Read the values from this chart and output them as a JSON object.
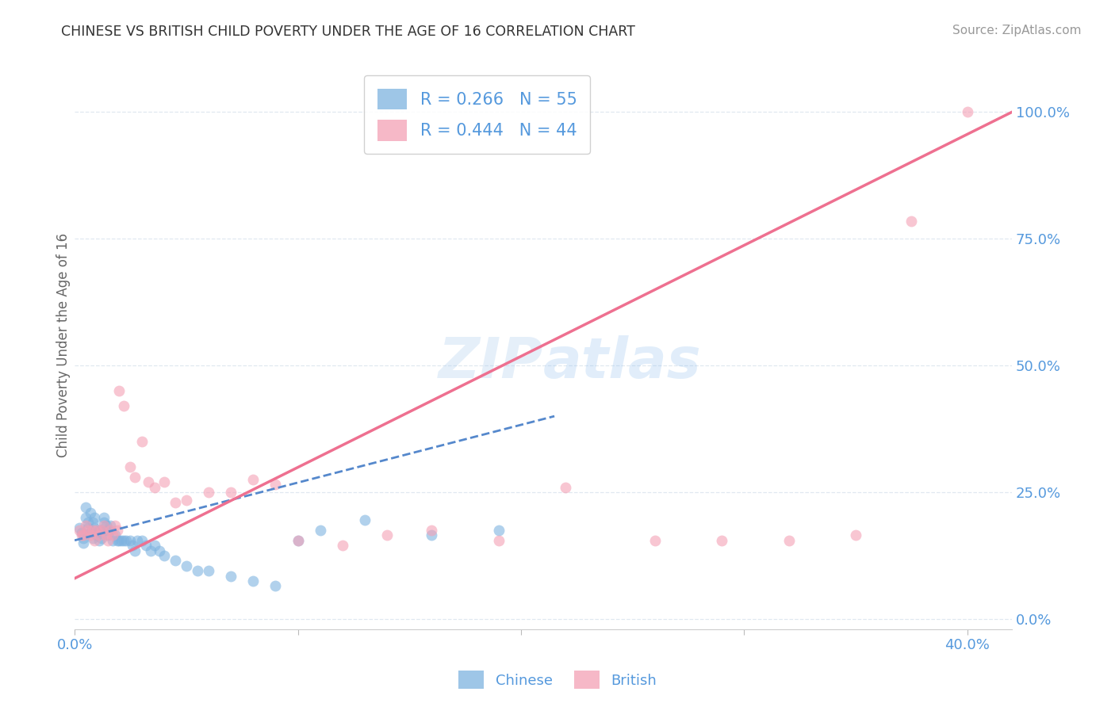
{
  "title": "CHINESE VS BRITISH CHILD POVERTY UNDER THE AGE OF 16 CORRELATION CHART",
  "source": "Source: ZipAtlas.com",
  "ylabel": "Child Poverty Under the Age of 16",
  "ytick_labels": [
    "0.0%",
    "25.0%",
    "50.0%",
    "75.0%",
    "100.0%"
  ],
  "ytick_values": [
    0.0,
    0.25,
    0.5,
    0.75,
    1.0
  ],
  "xtick_labels": [
    "0.0%",
    "",
    "",
    "",
    "40.0%"
  ],
  "xtick_values": [
    0.0,
    0.1,
    0.2,
    0.3,
    0.4
  ],
  "xmin": 0.0,
  "xmax": 0.42,
  "ymin": -0.02,
  "ymax": 1.1,
  "watermark": "ZIPatlas",
  "legend_chinese_r": "0.266",
  "legend_chinese_n": "55",
  "legend_british_r": "0.444",
  "legend_british_n": "44",
  "chinese_color": "#7EB3E0",
  "british_color": "#F4A0B5",
  "trendline_chinese_color": "#5588CC",
  "trendline_british_color": "#EE7090",
  "axis_label_color": "#5599DD",
  "grid_color": "#E0E8F0",
  "title_color": "#333333",
  "source_color": "#999999",
  "chinese_scatter_x": [
    0.002,
    0.003,
    0.004,
    0.004,
    0.005,
    0.005,
    0.006,
    0.006,
    0.007,
    0.007,
    0.008,
    0.008,
    0.009,
    0.009,
    0.01,
    0.01,
    0.011,
    0.011,
    0.012,
    0.012,
    0.013,
    0.013,
    0.014,
    0.015,
    0.015,
    0.016,
    0.017,
    0.018,
    0.019,
    0.02,
    0.021,
    0.022,
    0.023,
    0.025,
    0.026,
    0.027,
    0.028,
    0.03,
    0.032,
    0.034,
    0.036,
    0.038,
    0.04,
    0.045,
    0.05,
    0.055,
    0.06,
    0.07,
    0.08,
    0.09,
    0.1,
    0.11,
    0.13,
    0.16,
    0.19
  ],
  "chinese_scatter_y": [
    0.18,
    0.17,
    0.16,
    0.15,
    0.2,
    0.22,
    0.19,
    0.18,
    0.21,
    0.17,
    0.16,
    0.19,
    0.18,
    0.2,
    0.17,
    0.165,
    0.155,
    0.175,
    0.16,
    0.175,
    0.19,
    0.2,
    0.185,
    0.175,
    0.165,
    0.185,
    0.155,
    0.165,
    0.155,
    0.155,
    0.155,
    0.155,
    0.155,
    0.155,
    0.145,
    0.135,
    0.155,
    0.155,
    0.145,
    0.135,
    0.145,
    0.135,
    0.125,
    0.115,
    0.105,
    0.095,
    0.095,
    0.085,
    0.075,
    0.065,
    0.155,
    0.175,
    0.195,
    0.165,
    0.175
  ],
  "british_scatter_x": [
    0.002,
    0.003,
    0.004,
    0.005,
    0.006,
    0.007,
    0.008,
    0.009,
    0.01,
    0.011,
    0.012,
    0.013,
    0.014,
    0.015,
    0.016,
    0.017,
    0.018,
    0.019,
    0.02,
    0.022,
    0.025,
    0.027,
    0.03,
    0.033,
    0.036,
    0.04,
    0.045,
    0.05,
    0.06,
    0.07,
    0.08,
    0.09,
    0.1,
    0.12,
    0.14,
    0.16,
    0.19,
    0.22,
    0.26,
    0.29,
    0.32,
    0.35,
    0.375,
    0.4
  ],
  "british_scatter_y": [
    0.175,
    0.165,
    0.165,
    0.185,
    0.175,
    0.165,
    0.175,
    0.155,
    0.175,
    0.165,
    0.175,
    0.185,
    0.165,
    0.155,
    0.175,
    0.165,
    0.185,
    0.175,
    0.45,
    0.42,
    0.3,
    0.28,
    0.35,
    0.27,
    0.26,
    0.27,
    0.23,
    0.235,
    0.25,
    0.25,
    0.275,
    0.265,
    0.155,
    0.145,
    0.165,
    0.175,
    0.155,
    0.26,
    0.155,
    0.155,
    0.155,
    0.165,
    0.785,
    1.0
  ],
  "chinese_trend_x": [
    0.0,
    0.215
  ],
  "chinese_trend_y": [
    0.155,
    0.4
  ],
  "british_trend_x": [
    0.0,
    0.42
  ],
  "british_trend_y": [
    0.08,
    1.0
  ]
}
